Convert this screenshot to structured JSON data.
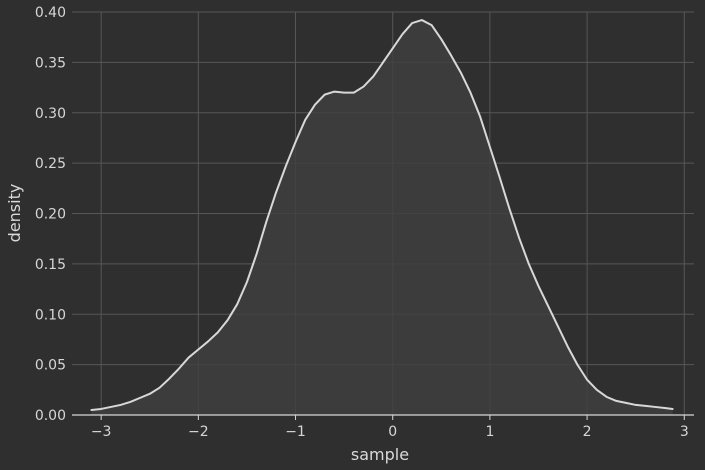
{
  "chart_data": {
    "type": "area",
    "xlabel": "sample",
    "ylabel": "density",
    "xlim": [
      -3.3,
      3.1
    ],
    "ylim": [
      0,
      0.4
    ],
    "x_ticks": [
      {
        "value": -3,
        "label": "−3"
      },
      {
        "value": -2,
        "label": "−2"
      },
      {
        "value": -1,
        "label": "−1"
      },
      {
        "value": 0,
        "label": "0"
      },
      {
        "value": 1,
        "label": "1"
      },
      {
        "value": 2,
        "label": "2"
      },
      {
        "value": 3,
        "label": "3"
      }
    ],
    "y_ticks": [
      {
        "value": 0.0,
        "label": "0.00"
      },
      {
        "value": 0.05,
        "label": "0.05"
      },
      {
        "value": 0.1,
        "label": "0.10"
      },
      {
        "value": 0.15,
        "label": "0.15"
      },
      {
        "value": 0.2,
        "label": "0.20"
      },
      {
        "value": 0.25,
        "label": "0.25"
      },
      {
        "value": 0.3,
        "label": "0.30"
      },
      {
        "value": 0.35,
        "label": "0.35"
      },
      {
        "value": 0.4,
        "label": "0.40"
      }
    ],
    "grid": true,
    "colors": {
      "background": "#2f2f2f",
      "grid": "#575757",
      "fill": "#404040",
      "line": "#d8d8d8",
      "text": "#d6d6d6"
    },
    "series": [
      {
        "points": [
          [
            -3.1,
            0.005
          ],
          [
            -3.0,
            0.006
          ],
          [
            -2.9,
            0.008
          ],
          [
            -2.8,
            0.01
          ],
          [
            -2.7,
            0.013
          ],
          [
            -2.6,
            0.017
          ],
          [
            -2.5,
            0.021
          ],
          [
            -2.4,
            0.027
          ],
          [
            -2.3,
            0.036
          ],
          [
            -2.2,
            0.046
          ],
          [
            -2.1,
            0.057
          ],
          [
            -2.0,
            0.065
          ],
          [
            -1.9,
            0.073
          ],
          [
            -1.8,
            0.082
          ],
          [
            -1.7,
            0.094
          ],
          [
            -1.6,
            0.11
          ],
          [
            -1.5,
            0.132
          ],
          [
            -1.4,
            0.16
          ],
          [
            -1.3,
            0.192
          ],
          [
            -1.2,
            0.221
          ],
          [
            -1.1,
            0.247
          ],
          [
            -1.0,
            0.271
          ],
          [
            -0.9,
            0.293
          ],
          [
            -0.8,
            0.308
          ],
          [
            -0.7,
            0.318
          ],
          [
            -0.6,
            0.321
          ],
          [
            -0.5,
            0.32
          ],
          [
            -0.4,
            0.32
          ],
          [
            -0.3,
            0.326
          ],
          [
            -0.2,
            0.336
          ],
          [
            -0.1,
            0.35
          ],
          [
            0.0,
            0.364
          ],
          [
            0.1,
            0.378
          ],
          [
            0.2,
            0.389
          ],
          [
            0.3,
            0.392
          ],
          [
            0.4,
            0.387
          ],
          [
            0.5,
            0.373
          ],
          [
            0.6,
            0.357
          ],
          [
            0.7,
            0.34
          ],
          [
            0.8,
            0.32
          ],
          [
            0.9,
            0.296
          ],
          [
            1.0,
            0.266
          ],
          [
            1.1,
            0.236
          ],
          [
            1.2,
            0.205
          ],
          [
            1.3,
            0.176
          ],
          [
            1.4,
            0.15
          ],
          [
            1.5,
            0.128
          ],
          [
            1.6,
            0.108
          ],
          [
            1.7,
            0.088
          ],
          [
            1.8,
            0.068
          ],
          [
            1.9,
            0.05
          ],
          [
            2.0,
            0.035
          ],
          [
            2.1,
            0.025
          ],
          [
            2.2,
            0.018
          ],
          [
            2.3,
            0.014
          ],
          [
            2.4,
            0.012
          ],
          [
            2.5,
            0.01
          ],
          [
            2.6,
            0.009
          ],
          [
            2.7,
            0.008
          ],
          [
            2.8,
            0.007
          ],
          [
            2.88,
            0.006
          ]
        ]
      }
    ]
  }
}
